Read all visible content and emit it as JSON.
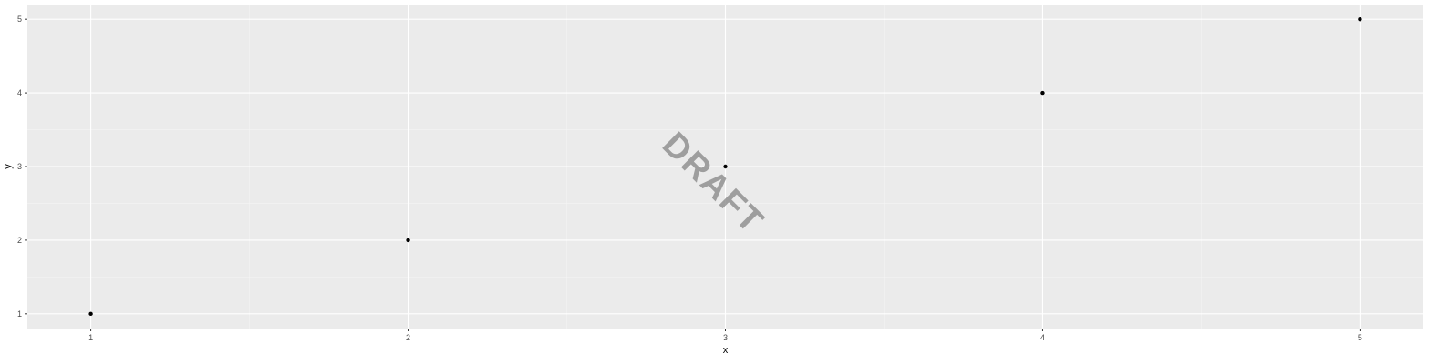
{
  "colors": {
    "panel_background": "#ebebeb",
    "grid_major": "#ffffff",
    "grid_minor": "#f5f5f5",
    "point": "#000000",
    "tick": "#333333",
    "tick_label": "#4d4d4d",
    "watermark": "#8c8c8c"
  },
  "watermark": {
    "text": "DRAFT"
  },
  "chart_data": {
    "type": "scatter",
    "title": "",
    "xlabel": "x",
    "ylabel": "y",
    "x": [
      1,
      2,
      3,
      4,
      5
    ],
    "y": [
      1,
      2,
      3,
      4,
      5
    ],
    "xlim": [
      0.8,
      5.2
    ],
    "ylim": [
      0.8,
      5.2
    ],
    "x_ticks": [
      1,
      2,
      3,
      4,
      5
    ],
    "y_ticks": [
      1,
      2,
      3,
      4,
      5
    ],
    "x_tick_labels": [
      "1",
      "2",
      "3",
      "4",
      "5"
    ],
    "y_tick_labels": [
      "1",
      "2",
      "3",
      "4",
      "5"
    ],
    "grid": true,
    "legend": "none"
  }
}
